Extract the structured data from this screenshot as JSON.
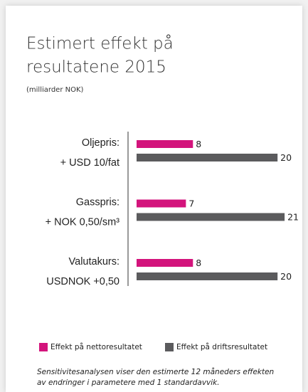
{
  "chart_data": {
    "type": "bar",
    "orientation": "horizontal",
    "title": [
      "Estimert effekt på",
      "resultatene 2015"
    ],
    "subtitle": "(milliarder NOK)",
    "categories": [
      [
        "Oljepris:",
        "+ USD 10/fat"
      ],
      [
        "Gasspris:",
        "+ NOK 0,50/sm³"
      ],
      [
        "Valutakurs:",
        "USDNOK +0,50"
      ]
    ],
    "series": [
      {
        "name": "Effekt på nettoresultatet",
        "color": "#d3147c",
        "values": [
          8,
          7,
          8
        ]
      },
      {
        "name": "Effekt på driftsresultatet",
        "color": "#5b5b5d",
        "values": [
          20,
          21,
          20
        ]
      }
    ],
    "xlim": [
      0,
      22
    ],
    "note": [
      "Sensitivitesanalysen viser den estimerte 12 måneders effekten",
      "av endringer i parametere med 1 standardavvik."
    ]
  }
}
